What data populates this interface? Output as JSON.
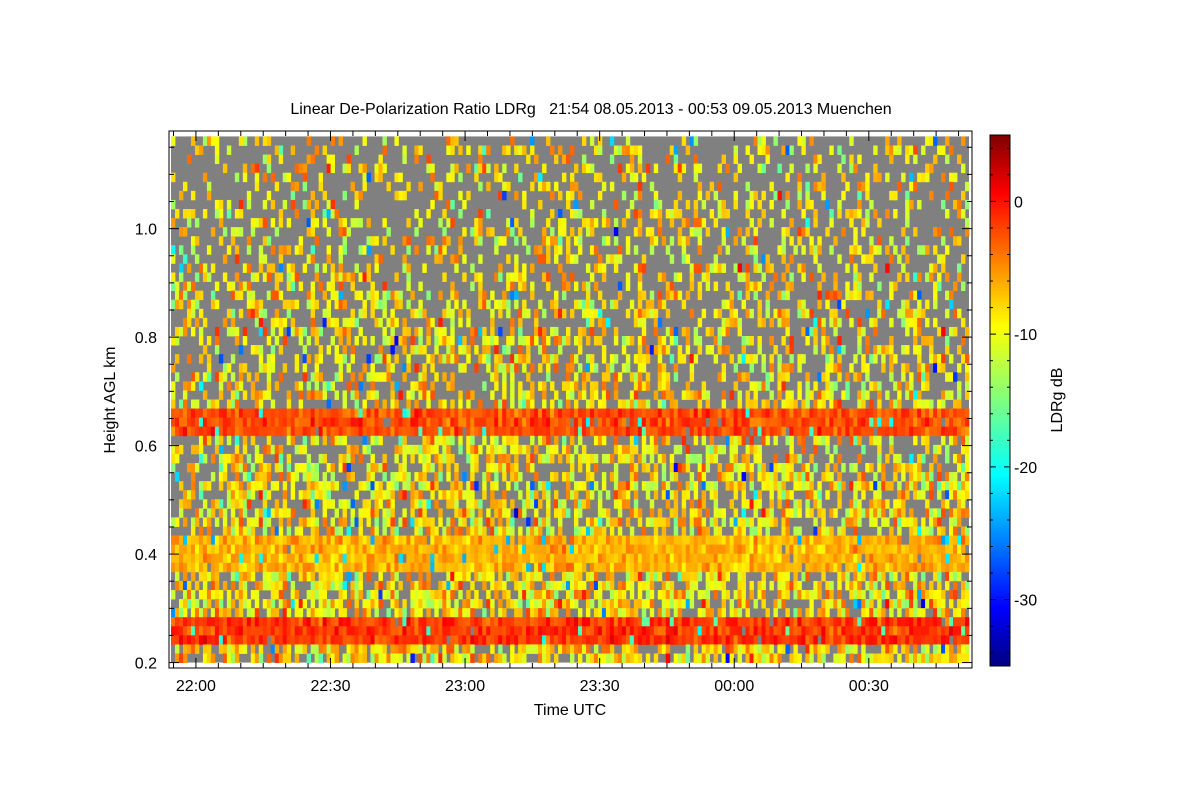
{
  "chart_data": {
    "type": "heatmap",
    "title": "Linear De-Polarization Ratio LDRg   21:54 08.05.2013 - 00:53 09.05.2013 Muenchen",
    "xlabel": "Time UTC",
    "ylabel": "Height AGL km",
    "x_range": [
      "21:54",
      "00:53"
    ],
    "x_ticks": [
      "22:00",
      "22:30",
      "23:00",
      "23:30",
      "00:00",
      "00:30"
    ],
    "x_tick_minutes": [
      6,
      36,
      66,
      96,
      126,
      156
    ],
    "x_span_minutes": 179,
    "y_range": [
      0.19,
      1.18
    ],
    "y_ticks": [
      "0.2",
      "0.4",
      "0.6",
      "0.8",
      "1.0"
    ],
    "y_tick_values": [
      0.2,
      0.4,
      0.6,
      0.8,
      1.0
    ],
    "data_height_range": [
      0.2,
      1.17
    ],
    "missing_color": "#808080",
    "colorbar": {
      "label": "LDRg dB",
      "range": [
        -35,
        5
      ],
      "ticks": [
        "0",
        "-10",
        "-20",
        "-30"
      ],
      "tick_values": [
        0,
        -10,
        -20,
        -30
      ],
      "colormap": "jet"
    },
    "features": [
      {
        "height_range": [
          0.62,
          0.65
        ],
        "approx_ldr_db": -3
      },
      {
        "height_range": [
          0.38,
          0.42
        ],
        "approx_ldr_db": -7
      },
      {
        "height_range": [
          0.25,
          0.28
        ],
        "approx_ldr_db": -2
      }
    ]
  }
}
